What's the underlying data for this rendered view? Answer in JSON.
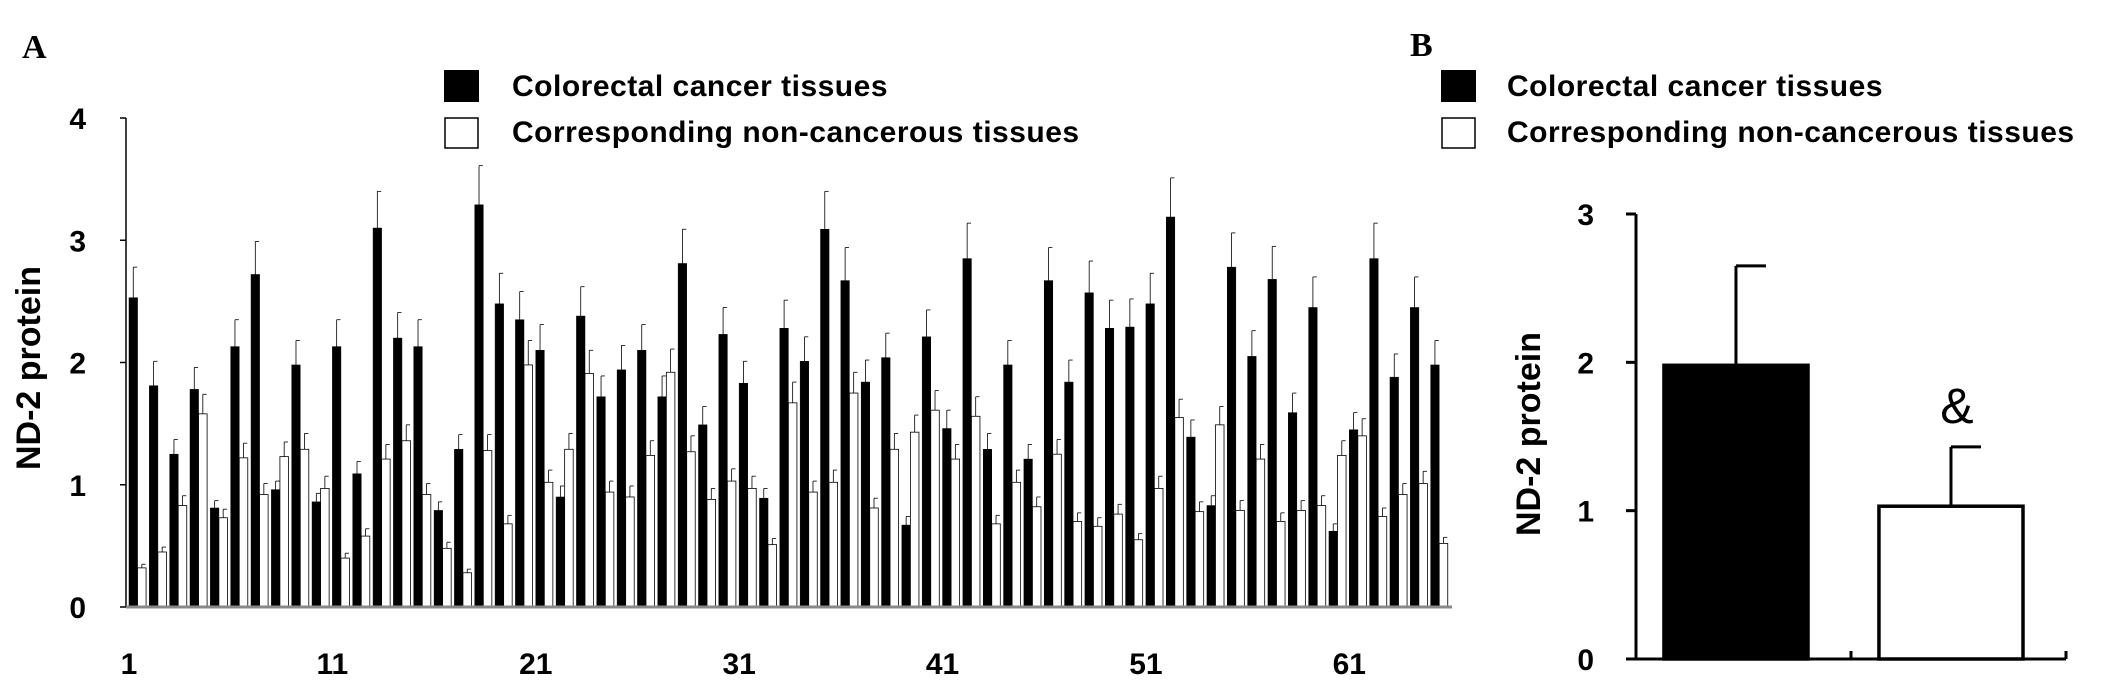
{
  "chart_data": [
    {
      "type": "bar",
      "panel": "A",
      "ylabel": "ND-2 protein",
      "xlabel": "",
      "ylim": [
        0,
        4
      ],
      "y_ticks": [
        "0",
        "1",
        "2",
        "3",
        "4"
      ],
      "x_tick_labels": [
        "1",
        "11",
        "21",
        "31",
        "41",
        "51",
        "61"
      ],
      "legend": [
        "Colorectal cancer tissues",
        "Corresponding non-cancerous tissues"
      ],
      "legend_position": "top",
      "series": [
        {
          "name": "Colorectal cancer tissues",
          "color": "#000000",
          "values": [
            2.53,
            1.81,
            1.25,
            1.78,
            0.81,
            2.13,
            2.72,
            0.96,
            1.98,
            0.86,
            2.13,
            1.09,
            3.1,
            2.2,
            2.13,
            0.79,
            1.29,
            3.29,
            2.48,
            2.35,
            2.1,
            0.9,
            2.38,
            1.72,
            1.94,
            2.1,
            1.72,
            2.81,
            1.49,
            2.23,
            1.83,
            0.89,
            2.28,
            2.01,
            3.09,
            2.67,
            1.84,
            2.04,
            0.67,
            2.21,
            1.46,
            2.85,
            1.29,
            1.98,
            1.21,
            2.67,
            1.84,
            2.57,
            2.28,
            2.29,
            2.48,
            3.19,
            1.39,
            0.83,
            2.78,
            2.05,
            2.68,
            1.59,
            2.45,
            0.62,
            1.45,
            2.85,
            1.88,
            2.45,
            1.98
          ],
          "errors": [
            0.25,
            0.2,
            0.12,
            0.18,
            0.06,
            0.22,
            0.27,
            0.07,
            0.2,
            0.07,
            0.22,
            0.1,
            0.3,
            0.21,
            0.22,
            0.07,
            0.12,
            0.32,
            0.25,
            0.23,
            0.21,
            0.09,
            0.24,
            0.17,
            0.2,
            0.21,
            0.17,
            0.28,
            0.15,
            0.22,
            0.18,
            0.08,
            0.23,
            0.2,
            0.31,
            0.27,
            0.18,
            0.2,
            0.07,
            0.22,
            0.15,
            0.29,
            0.13,
            0.2,
            0.12,
            0.27,
            0.18,
            0.26,
            0.23,
            0.23,
            0.25,
            0.32,
            0.14,
            0.08,
            0.28,
            0.21,
            0.27,
            0.16,
            0.25,
            0.06,
            0.14,
            0.29,
            0.19,
            0.25,
            0.2
          ]
        },
        {
          "name": "Corresponding non-cancerous tissues",
          "color": "#ffffff",
          "values": [
            0.32,
            0.45,
            0.83,
            1.58,
            0.73,
            1.22,
            0.92,
            1.23,
            1.29,
            0.97,
            0.4,
            0.58,
            1.21,
            1.36,
            0.92,
            0.48,
            0.28,
            1.28,
            0.68,
            1.98,
            1.02,
            1.29,
            1.91,
            0.94,
            0.9,
            1.24,
            1.92,
            1.27,
            0.88,
            1.03,
            0.97,
            0.51,
            1.67,
            0.94,
            1.02,
            1.75,
            0.81,
            1.29,
            1.43,
            1.61,
            1.21,
            1.56,
            0.68,
            1.02,
            0.82,
            1.25,
            0.7,
            0.66,
            0.76,
            0.55,
            0.97,
            1.55,
            0.78,
            1.49,
            0.79,
            1.21,
            0.7,
            0.79,
            0.83,
            1.24,
            1.4,
            0.74,
            0.92,
            1.01,
            0.52
          ],
          "errors": [
            0.03,
            0.04,
            0.08,
            0.16,
            0.07,
            0.12,
            0.09,
            0.12,
            0.13,
            0.1,
            0.04,
            0.06,
            0.12,
            0.13,
            0.09,
            0.05,
            0.03,
            0.13,
            0.07,
            0.2,
            0.1,
            0.13,
            0.19,
            0.09,
            0.09,
            0.12,
            0.19,
            0.13,
            0.09,
            0.1,
            0.1,
            0.05,
            0.17,
            0.09,
            0.1,
            0.17,
            0.08,
            0.13,
            0.14,
            0.16,
            0.12,
            0.16,
            0.07,
            0.1,
            0.08,
            0.12,
            0.07,
            0.07,
            0.08,
            0.05,
            0.1,
            0.15,
            0.08,
            0.15,
            0.08,
            0.12,
            0.07,
            0.08,
            0.08,
            0.12,
            0.14,
            0.07,
            0.09,
            0.1,
            0.05
          ]
        }
      ],
      "grid": false
    },
    {
      "type": "bar",
      "panel": "B",
      "ylabel": "ND-2 protein",
      "xlabel": "",
      "ylim": [
        0,
        3
      ],
      "y_ticks": [
        "0",
        "1",
        "2",
        "3"
      ],
      "legend": [
        "Colorectal cancer tissues",
        "Corresponding non-cancerous tissues"
      ],
      "legend_position": "top",
      "series": [
        {
          "name": "Colorectal cancer tissues",
          "color": "#000000",
          "value": 1.98,
          "error": 0.67
        },
        {
          "name": "Corresponding non-cancerous tissues",
          "color": "#ffffff",
          "value": 1.03,
          "error": 0.4,
          "annotation": "&"
        }
      ],
      "grid": false
    }
  ]
}
